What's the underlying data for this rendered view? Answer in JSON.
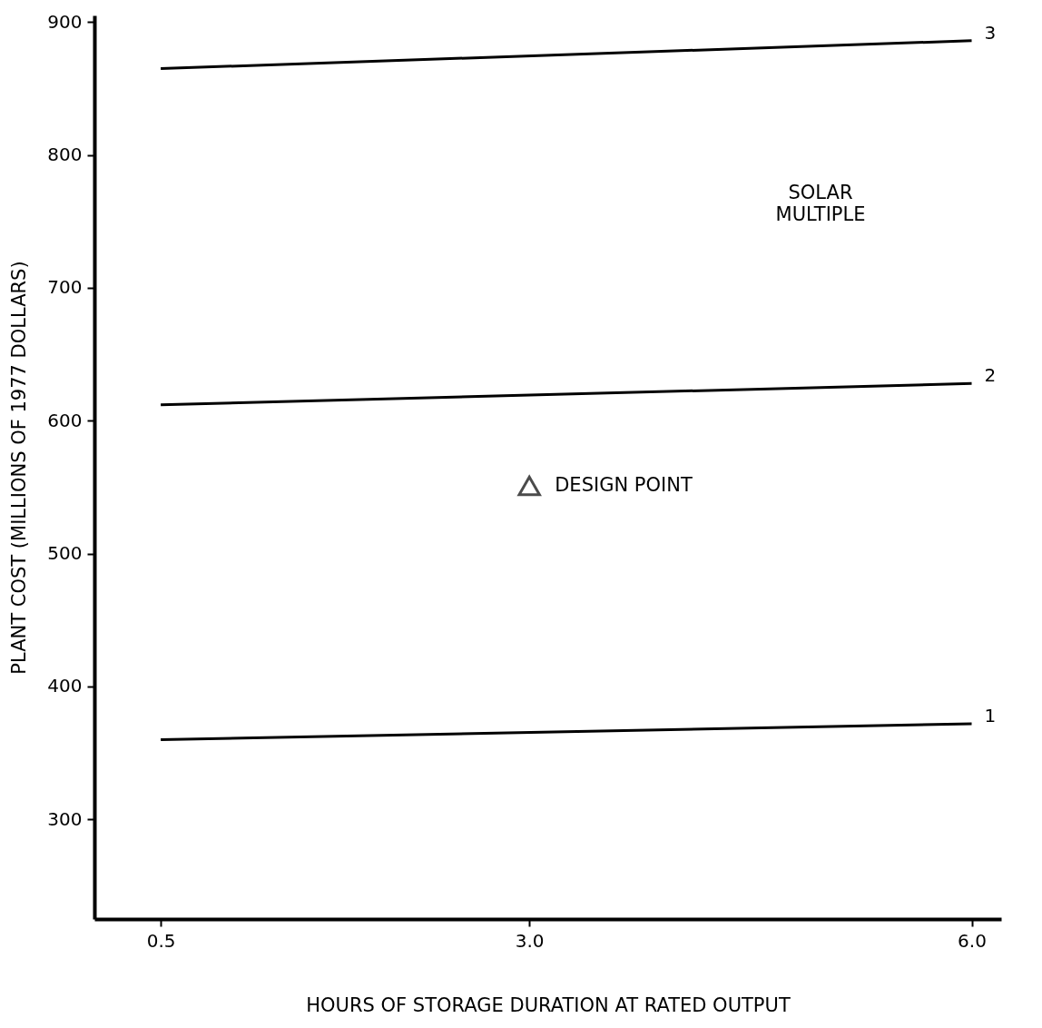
{
  "chart_data": {
    "type": "line",
    "xlabel": "HOURS OF STORAGE DURATION AT RATED OUTPUT",
    "ylabel": "PLANT COST (MILLIONS OF 1977 DOLLARS)",
    "xlim": [
      0.05,
      6.2
    ],
    "ylim": [
      225,
      905
    ],
    "xticks": [
      {
        "value": 0.5,
        "label": "0.5"
      },
      {
        "value": 3,
        "label": "3.0"
      },
      {
        "value": 6,
        "label": "6.0"
      }
    ],
    "yticks": [
      300,
      400,
      500,
      600,
      700,
      800,
      900
    ],
    "grid": false,
    "marker": "none",
    "line_style": "solid",
    "series": [
      {
        "name": "3",
        "color": "#000000",
        "x": [
          0.5,
          6.0
        ],
        "values": [
          865,
          886
        ]
      },
      {
        "name": "2",
        "color": "#000000",
        "x": [
          0.5,
          6.0
        ],
        "values": [
          612,
          628
        ]
      },
      {
        "name": "1",
        "color": "#000000",
        "x": [
          0.5,
          6.0
        ],
        "values": [
          360,
          372
        ]
      },
      {
        "type": "scatter",
        "marker": "triangle",
        "color": "#000000",
        "x": [
          3.0
        ],
        "values": [
          551
        ]
      }
    ],
    "annotations": [
      {
        "text": "DESIGN POINT",
        "x": 3.0,
        "y": 551
      },
      "SOLAR MULTIPLE"
    ]
  }
}
